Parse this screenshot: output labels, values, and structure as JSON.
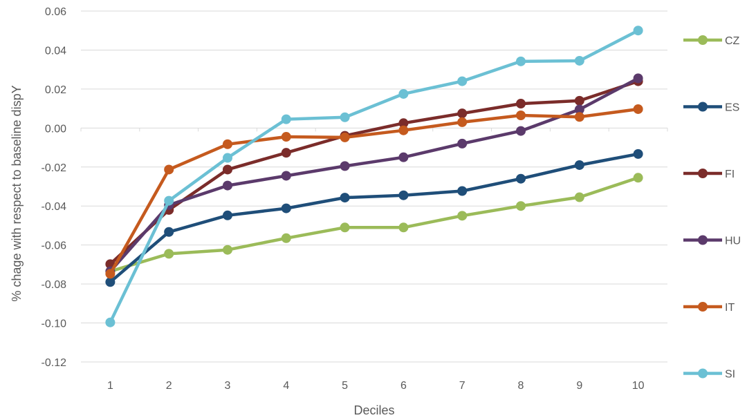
{
  "chart_data": {
    "type": "line",
    "title": "",
    "xlabel": "Deciles",
    "ylabel": "% chage with respect to baseline dispY",
    "x": [
      1,
      2,
      3,
      4,
      5,
      6,
      7,
      8,
      9,
      10
    ],
    "ylim": [
      -0.12,
      0.06
    ],
    "yticks": [
      "0.06",
      "0.04",
      "0.02",
      "0.00",
      "-0.02",
      "-0.04",
      "-0.06",
      "-0.08",
      "-0.10",
      "-0.12"
    ],
    "grid": "horizontal",
    "legend_position": "right",
    "series": [
      {
        "name": "CZ",
        "color": "#9BBB59",
        "values": [
          -0.0735,
          -0.0645,
          -0.0625,
          -0.0565,
          -0.051,
          -0.051,
          -0.045,
          -0.04,
          -0.0355,
          -0.0255
        ]
      },
      {
        "name": "ES",
        "color": "#1F4E79",
        "values": [
          -0.079,
          -0.0533,
          -0.0448,
          -0.0412,
          -0.0357,
          -0.0345,
          -0.0323,
          -0.026,
          -0.019,
          -0.0133
        ]
      },
      {
        "name": "FI",
        "color": "#7B2C2A",
        "values": [
          -0.0698,
          -0.042,
          -0.0213,
          -0.0127,
          -0.004,
          0.0025,
          0.0075,
          0.0125,
          0.014,
          0.024
        ]
      },
      {
        "name": "HU",
        "color": "#5B3A6B",
        "values": [
          -0.0735,
          -0.0395,
          -0.0295,
          -0.0245,
          -0.0195,
          -0.015,
          -0.008,
          -0.0015,
          0.0095,
          0.0255
        ]
      },
      {
        "name": "IT",
        "color": "#C55A1E",
        "values": [
          -0.0748,
          -0.0213,
          -0.0083,
          -0.0045,
          -0.0048,
          -0.0012,
          0.003,
          0.0065,
          0.0057,
          0.0097
        ]
      },
      {
        "name": "SI",
        "color": "#6BC0D4",
        "values": [
          -0.0997,
          -0.0373,
          -0.0153,
          0.0045,
          0.0055,
          0.0175,
          0.024,
          0.0342,
          0.0345,
          0.05
        ]
      }
    ]
  }
}
